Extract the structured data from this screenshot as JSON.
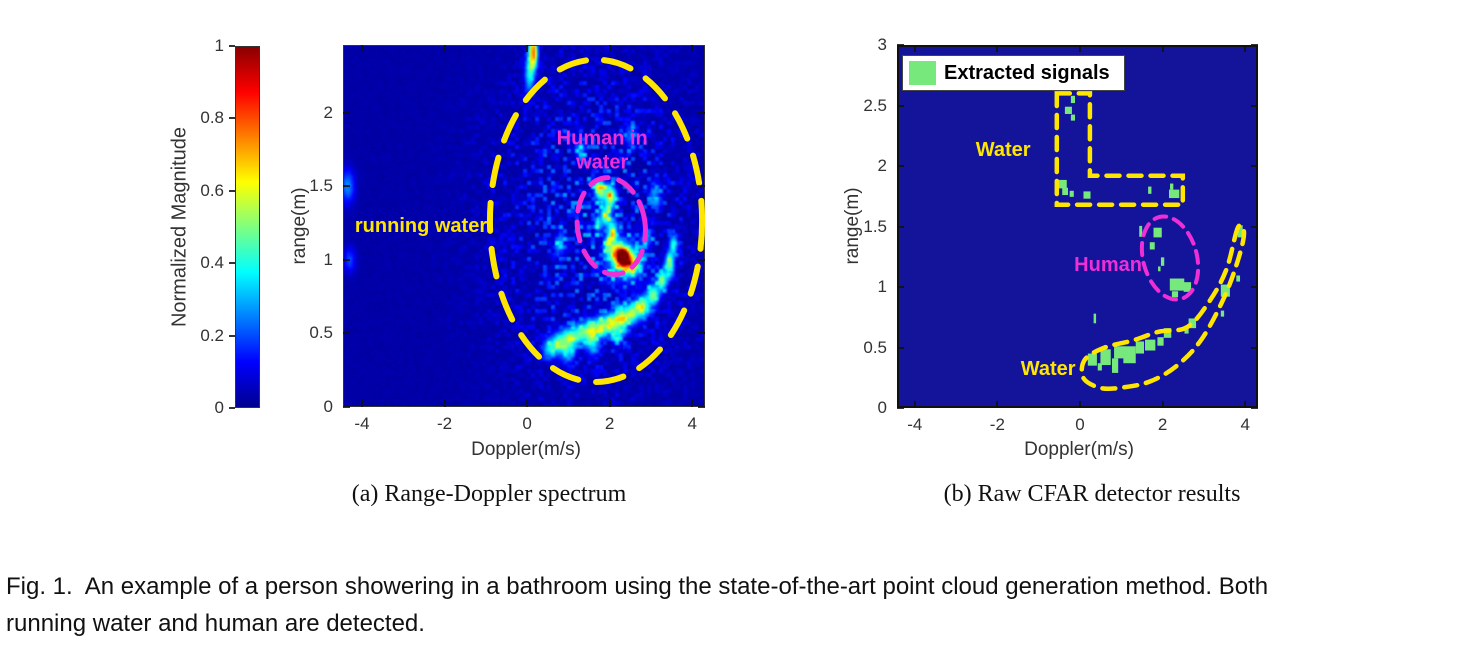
{
  "figure_caption": "Fig. 1.  An example of a person showering in a bathroom using the state-of-the-art point cloud generation method. Both\nrunning water and human are detected.",
  "colors": {
    "yellow": "#ffe600",
    "magenta": "#ee2fd6",
    "green": "#77e87b",
    "plot_b_background": "#14149b",
    "axis_text": "#333333"
  },
  "colorbar": {
    "label": "Normalized Magnitude",
    "ticks": [
      0,
      0.2,
      0.4,
      0.6,
      0.8,
      1
    ],
    "gradient": [
      [
        "0%",
        "#00008f"
      ],
      [
        "12.5%",
        "#0000ff"
      ],
      [
        "37.5%",
        "#00ffff"
      ],
      [
        "62.5%",
        "#ffff00"
      ],
      [
        "87.5%",
        "#ff0000"
      ],
      [
        "100%",
        "#8a0000"
      ]
    ]
  },
  "chart_data": [
    {
      "type": "heatmap",
      "caption": "(a)  Range-Doppler spectrum",
      "xlabel": "Doppler(m/s)",
      "ylabel": "range(m)",
      "xlim": [
        -4.46,
        4.31
      ],
      "ylim": [
        0,
        2.46
      ],
      "xticks": [
        -4,
        -2,
        0,
        2,
        4
      ],
      "yticks": [
        0,
        0.5,
        1,
        1.5,
        2
      ],
      "colormap": "jet",
      "hotspot": [
        2.32,
        1.02
      ],
      "noise_region": {
        "cx": 1.6,
        "cy": 1.25,
        "rx": 2.3,
        "ry": 1.05
      },
      "blobs": [
        [
          2.32,
          1.02,
          0.1,
          0.04,
          1.25
        ],
        [
          2.32,
          1.0,
          0.3,
          0.1,
          0.32
        ],
        [
          2.55,
          0.97,
          0.14,
          0.05,
          0.4
        ],
        [
          2.15,
          1.06,
          0.09,
          0.05,
          0.28
        ],
        [
          1.78,
          1.47,
          0.1,
          0.05,
          0.5
        ],
        [
          2.03,
          1.43,
          0.09,
          0.05,
          0.55
        ],
        [
          1.9,
          1.3,
          0.09,
          0.05,
          0.42
        ],
        [
          2.07,
          1.19,
          0.08,
          0.05,
          0.45
        ],
        [
          1.95,
          1.1,
          0.07,
          0.04,
          0.32
        ],
        [
          1.72,
          1.24,
          0.06,
          0.04,
          0.25
        ],
        [
          0.12,
          2.42,
          0.07,
          0.1,
          0.55
        ],
        [
          0.05,
          2.25,
          0.08,
          0.08,
          0.28
        ],
        [
          0.2,
          2.4,
          0.05,
          0.06,
          0.35
        ],
        [
          0.55,
          0.4,
          0.12,
          0.05,
          0.32
        ],
        [
          0.8,
          0.44,
          0.12,
          0.05,
          0.4
        ],
        [
          1.05,
          0.47,
          0.11,
          0.05,
          0.42
        ],
        [
          1.3,
          0.5,
          0.11,
          0.05,
          0.38
        ],
        [
          1.55,
          0.52,
          0.11,
          0.05,
          0.48
        ],
        [
          1.8,
          0.55,
          0.11,
          0.05,
          0.42
        ],
        [
          2.05,
          0.57,
          0.11,
          0.05,
          0.5
        ],
        [
          2.3,
          0.6,
          0.11,
          0.05,
          0.52
        ],
        [
          2.55,
          0.64,
          0.11,
          0.05,
          0.46
        ],
        [
          2.8,
          0.68,
          0.1,
          0.05,
          0.52
        ],
        [
          3.05,
          0.76,
          0.1,
          0.05,
          0.46
        ],
        [
          3.28,
          0.86,
          0.09,
          0.05,
          0.42
        ],
        [
          3.45,
          0.97,
          0.08,
          0.05,
          0.45
        ],
        [
          3.55,
          1.1,
          0.07,
          0.05,
          0.35
        ],
        [
          1.0,
          0.36,
          0.12,
          0.05,
          0.22
        ],
        [
          1.6,
          0.42,
          0.12,
          0.05,
          0.25
        ],
        [
          2.2,
          0.48,
          0.1,
          0.04,
          0.25
        ],
        [
          0.8,
          1.1,
          0.1,
          0.06,
          0.18
        ],
        [
          1.3,
          1.75,
          0.1,
          0.06,
          0.18
        ],
        [
          2.5,
          1.85,
          0.1,
          0.06,
          0.18
        ],
        [
          3.1,
          1.45,
          0.1,
          0.06,
          0.2
        ],
        [
          2.9,
          1.15,
          0.1,
          0.05,
          0.2
        ],
        [
          -4.35,
          1.5,
          0.12,
          0.08,
          0.22
        ],
        [
          -4.3,
          1.0,
          0.1,
          0.06,
          0.15
        ]
      ],
      "regions": [
        {
          "shape": "ellipse",
          "cx": 1.67,
          "cy": 1.265,
          "rx": 2.57,
          "ry": 1.095,
          "rot": 0,
          "color": "#ffe600",
          "dash": [
            28,
            18
          ],
          "width": 6,
          "label": "running-water-region"
        },
        {
          "shape": "ellipse",
          "cx": 2.04,
          "cy": 1.23,
          "rx": 0.82,
          "ry": 0.33,
          "rot": -8,
          "color": "#ee2fd6",
          "dash": [
            19,
            11
          ],
          "width": 5,
          "label": "human-in-water-region"
        }
      ],
      "annotations": [
        {
          "text": "running water",
          "x": -2.57,
          "y": 1.22,
          "color": "#ffe600"
        },
        {
          "text": "Human in\nwater",
          "x": 1.82,
          "y": 1.74,
          "color": "#ee2fd6"
        }
      ]
    },
    {
      "type": "scatter",
      "caption": "(b)  Raw CFAR detector results",
      "xlabel": "Doppler(m/s)",
      "ylabel": "range(m)",
      "xlim": [
        -4.43,
        4.31
      ],
      "ylim": [
        0,
        3
      ],
      "xticks": [
        -4,
        -2,
        0,
        2,
        4
      ],
      "yticks": [
        0,
        0.5,
        1,
        1.5,
        2,
        2.5,
        3
      ],
      "legend": {
        "label": "Extracted signals",
        "swatch_color": "#77e87b"
      },
      "points": [
        [
          -0.17,
          2.55,
          0.1,
          0.06
        ],
        [
          -0.28,
          2.46,
          0.17,
          0.06
        ],
        [
          -0.17,
          2.4,
          0.1,
          0.05
        ],
        [
          -0.42,
          1.85,
          0.2,
          0.07
        ],
        [
          -0.36,
          1.79,
          0.14,
          0.06
        ],
        [
          -0.2,
          1.77,
          0.1,
          0.05
        ],
        [
          0.17,
          1.76,
          0.17,
          0.06
        ],
        [
          1.69,
          1.8,
          0.08,
          0.06
        ],
        [
          2.22,
          1.83,
          0.08,
          0.05
        ],
        [
          2.28,
          1.77,
          0.25,
          0.07
        ],
        [
          1.47,
          1.46,
          0.07,
          0.09
        ],
        [
          1.88,
          1.45,
          0.2,
          0.08
        ],
        [
          1.75,
          1.34,
          0.12,
          0.06
        ],
        [
          2.0,
          1.21,
          0.08,
          0.07
        ],
        [
          1.92,
          1.15,
          0.06,
          0.04
        ],
        [
          2.35,
          1.02,
          0.35,
          0.1
        ],
        [
          2.6,
          1.0,
          0.18,
          0.08
        ],
        [
          2.3,
          0.94,
          0.15,
          0.05
        ],
        [
          3.88,
          1.46,
          0.12,
          0.1
        ],
        [
          3.83,
          1.07,
          0.09,
          0.05
        ],
        [
          3.52,
          0.97,
          0.22,
          0.1
        ],
        [
          3.45,
          0.78,
          0.08,
          0.05
        ],
        [
          2.72,
          0.7,
          0.18,
          0.08
        ],
        [
          2.58,
          0.64,
          0.1,
          0.05
        ],
        [
          0.36,
          0.74,
          0.06,
          0.08
        ],
        [
          0.3,
          0.4,
          0.22,
          0.1
        ],
        [
          0.48,
          0.34,
          0.1,
          0.06
        ],
        [
          0.62,
          0.42,
          0.25,
          0.13
        ],
        [
          0.85,
          0.35,
          0.15,
          0.12
        ],
        [
          0.95,
          0.46,
          0.25,
          0.1
        ],
        [
          1.2,
          0.44,
          0.3,
          0.14
        ],
        [
          1.45,
          0.5,
          0.2,
          0.1
        ],
        [
          1.7,
          0.52,
          0.25,
          0.09
        ],
        [
          1.95,
          0.55,
          0.15,
          0.07
        ],
        [
          2.12,
          0.62,
          0.18,
          0.08
        ]
      ],
      "regions": [
        {
          "shape": "polygon",
          "smooth": false,
          "points": [
            [
              -0.56,
              2.6
            ],
            [
              0.24,
              2.6
            ],
            [
              0.24,
              1.92
            ],
            [
              2.49,
              1.92
            ],
            [
              2.49,
              1.68
            ],
            [
              -0.56,
              1.68
            ]
          ],
          "color": "#ffe600",
          "dash": [
            13,
            9
          ],
          "width": 4.5,
          "label": "water-region-top"
        },
        {
          "shape": "ellipse",
          "cx": 2.18,
          "cy": 1.24,
          "rx": 0.65,
          "ry": 0.35,
          "rot": -15,
          "color": "#ee2fd6",
          "dash": [
            12,
            8
          ],
          "width": 4,
          "label": "human-region"
        },
        {
          "shape": "polygon",
          "smooth": true,
          "points": [
            [
              3.82,
              1.49
            ],
            [
              3.55,
              1.15
            ],
            [
              3.15,
              0.89
            ],
            [
              2.6,
              0.67
            ],
            [
              1.9,
              0.63
            ],
            [
              1.3,
              0.56
            ],
            [
              0.6,
              0.5
            ],
            [
              0.12,
              0.4
            ],
            [
              0.08,
              0.25
            ],
            [
              0.5,
              0.165
            ],
            [
              1.05,
              0.17
            ],
            [
              1.7,
              0.22
            ],
            [
              2.35,
              0.35
            ],
            [
              2.95,
              0.57
            ],
            [
              3.5,
              0.92
            ],
            [
              3.85,
              1.25
            ],
            [
              3.97,
              1.45
            ]
          ],
          "color": "#ffe600",
          "dash": [
            13,
            9
          ],
          "width": 4.5,
          "label": "water-region-bottom"
        }
      ],
      "annotations": [
        {
          "text": "Water",
          "x": -1.86,
          "y": 2.12,
          "color": "#ffe600"
        },
        {
          "text": "Human",
          "x": 0.68,
          "y": 1.17,
          "color": "#ee2fd6"
        },
        {
          "text": "Water",
          "x": -0.77,
          "y": 0.31,
          "color": "#ffe600"
        }
      ]
    }
  ]
}
